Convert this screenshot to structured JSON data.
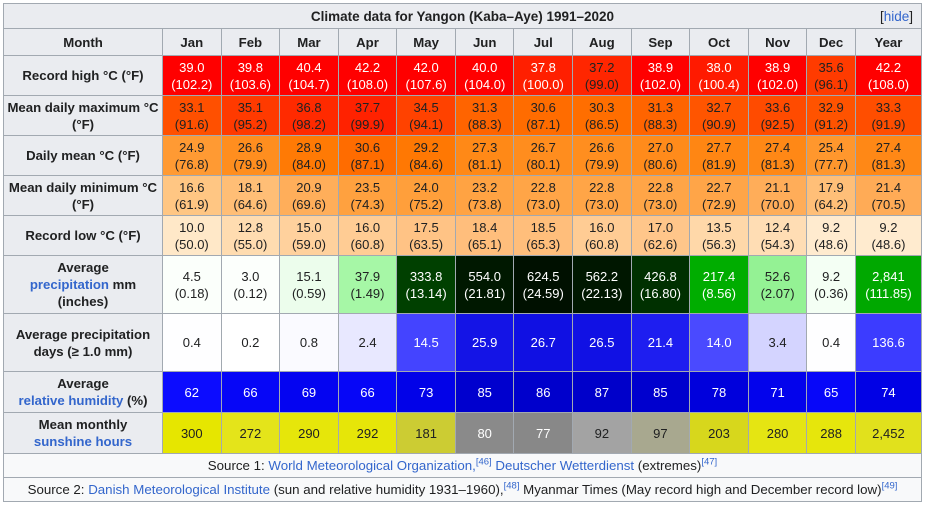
{
  "title": "Climate data for Yangon (Kaba–Aye) 1991–2020",
  "hide_label": "hide",
  "header": {
    "month_label": "Month",
    "months": [
      "Jan",
      "Feb",
      "Mar",
      "Apr",
      "May",
      "Jun",
      "Jul",
      "Aug",
      "Sep",
      "Oct",
      "Nov",
      "Dec",
      "Year"
    ]
  },
  "rows": [
    {
      "label_pre": "Record high °C (°F)",
      "label_link": "",
      "label_post": "",
      "row_class": "r-high",
      "cells": [
        {
          "v": "39.0",
          "s": "(102.2)",
          "bg": "#ff0000",
          "fg": "#ffffff"
        },
        {
          "v": "39.8",
          "s": "(103.6)",
          "bg": "#ff0000",
          "fg": "#ffffff"
        },
        {
          "v": "40.4",
          "s": "(104.7)",
          "bg": "#ff0000",
          "fg": "#ffffff"
        },
        {
          "v": "42.2",
          "s": "(108.0)",
          "bg": "#ff0000",
          "fg": "#ffffff"
        },
        {
          "v": "42.0",
          "s": "(107.6)",
          "bg": "#ff0000",
          "fg": "#ffffff"
        },
        {
          "v": "40.0",
          "s": "(104.0)",
          "bg": "#ff0000",
          "fg": "#ffffff"
        },
        {
          "v": "37.8",
          "s": "(100.0)",
          "bg": "#ff1f00",
          "fg": "#ffffff"
        },
        {
          "v": "37.2",
          "s": "(99.0)",
          "bg": "#ff2600",
          "fg": "#202122"
        },
        {
          "v": "38.9",
          "s": "(102.0)",
          "bg": "#ff0000",
          "fg": "#ffffff"
        },
        {
          "v": "38.0",
          "s": "(100.4)",
          "bg": "#ff1a00",
          "fg": "#ffffff"
        },
        {
          "v": "38.9",
          "s": "(102.0)",
          "bg": "#ff0000",
          "fg": "#ffffff"
        },
        {
          "v": "35.6",
          "s": "(96.1)",
          "bg": "#ff3b00",
          "fg": "#202122"
        },
        {
          "v": "42.2",
          "s": "(108.0)",
          "bg": "#ff0000",
          "fg": "#ffffff"
        }
      ]
    },
    {
      "label_pre": "Mean daily maximum °C (°F)",
      "label_link": "",
      "label_post": "",
      "row_class": "r-max",
      "cells": [
        {
          "v": "33.1",
          "s": "(91.6)",
          "bg": "#ff5000",
          "fg": "#202122"
        },
        {
          "v": "35.1",
          "s": "(95.2)",
          "bg": "#ff3a00",
          "fg": "#202122"
        },
        {
          "v": "36.8",
          "s": "(98.2)",
          "bg": "#ff2a00",
          "fg": "#202122"
        },
        {
          "v": "37.7",
          "s": "(99.9)",
          "bg": "#ff2200",
          "fg": "#202122"
        },
        {
          "v": "34.5",
          "s": "(94.1)",
          "bg": "#ff4200",
          "fg": "#202122"
        },
        {
          "v": "31.3",
          "s": "(88.3)",
          "bg": "#ff6400",
          "fg": "#202122"
        },
        {
          "v": "30.6",
          "s": "(87.1)",
          "bg": "#ff6c00",
          "fg": "#202122"
        },
        {
          "v": "30.3",
          "s": "(86.5)",
          "bg": "#ff6e00",
          "fg": "#202122"
        },
        {
          "v": "31.3",
          "s": "(88.3)",
          "bg": "#ff6400",
          "fg": "#202122"
        },
        {
          "v": "32.7",
          "s": "(90.9)",
          "bg": "#ff5500",
          "fg": "#202122"
        },
        {
          "v": "33.6",
          "s": "(92.5)",
          "bg": "#ff4b00",
          "fg": "#202122"
        },
        {
          "v": "32.9",
          "s": "(91.2)",
          "bg": "#ff5300",
          "fg": "#202122"
        },
        {
          "v": "33.3",
          "s": "(91.9)",
          "bg": "#ff4e00",
          "fg": "#202122"
        }
      ]
    },
    {
      "label_pre": "Daily mean °C (°F)",
      "label_link": "",
      "label_post": "",
      "row_class": "r-mean",
      "cells": [
        {
          "v": "24.9",
          "s": "(76.8)",
          "bg": "#ff9a33",
          "fg": "#202122"
        },
        {
          "v": "26.6",
          "s": "(79.9)",
          "bg": "#ff8e1f",
          "fg": "#202122"
        },
        {
          "v": "28.9",
          "s": "(84.0)",
          "bg": "#ff7a05",
          "fg": "#202122"
        },
        {
          "v": "30.6",
          "s": "(87.1)",
          "bg": "#ff6c00",
          "fg": "#202122"
        },
        {
          "v": "29.2",
          "s": "(84.6)",
          "bg": "#ff7803",
          "fg": "#202122"
        },
        {
          "v": "27.3",
          "s": "(81.1)",
          "bg": "#ff8917",
          "fg": "#202122"
        },
        {
          "v": "26.7",
          "s": "(80.1)",
          "bg": "#ff8d1e",
          "fg": "#202122"
        },
        {
          "v": "26.6",
          "s": "(79.9)",
          "bg": "#ff8e1f",
          "fg": "#202122"
        },
        {
          "v": "27.0",
          "s": "(80.6)",
          "bg": "#ff8b1b",
          "fg": "#202122"
        },
        {
          "v": "27.7",
          "s": "(81.9)",
          "bg": "#ff8613",
          "fg": "#202122"
        },
        {
          "v": "27.4",
          "s": "(81.3)",
          "bg": "#ff8816",
          "fg": "#202122"
        },
        {
          "v": "25.4",
          "s": "(77.7)",
          "bg": "#ff972d",
          "fg": "#202122"
        },
        {
          "v": "27.4",
          "s": "(81.3)",
          "bg": "#ff8816",
          "fg": "#202122"
        }
      ]
    },
    {
      "label_pre": "Mean daily minimum °C (°F)",
      "label_link": "",
      "label_post": "",
      "row_class": "r-min",
      "cells": [
        {
          "v": "16.6",
          "s": "(61.9)",
          "bg": "#ffc683",
          "fg": "#202122"
        },
        {
          "v": "18.1",
          "s": "(64.6)",
          "bg": "#ffbe76",
          "fg": "#202122"
        },
        {
          "v": "20.9",
          "s": "(69.6)",
          "bg": "#ffae5a",
          "fg": "#202122"
        },
        {
          "v": "23.5",
          "s": "(74.3)",
          "bg": "#ffa13f",
          "fg": "#202122"
        },
        {
          "v": "24.0",
          "s": "(75.2)",
          "bg": "#ff9f3b",
          "fg": "#202122"
        },
        {
          "v": "23.2",
          "s": "(73.8)",
          "bg": "#ffa343",
          "fg": "#202122"
        },
        {
          "v": "22.8",
          "s": "(73.0)",
          "bg": "#ffa547",
          "fg": "#202122"
        },
        {
          "v": "22.8",
          "s": "(73.0)",
          "bg": "#ffa547",
          "fg": "#202122"
        },
        {
          "v": "22.8",
          "s": "(73.0)",
          "bg": "#ffa547",
          "fg": "#202122"
        },
        {
          "v": "22.7",
          "s": "(72.9)",
          "bg": "#ffa548",
          "fg": "#202122"
        },
        {
          "v": "21.1",
          "s": "(70.0)",
          "bg": "#ffad59",
          "fg": "#202122"
        },
        {
          "v": "17.9",
          "s": "(64.2)",
          "bg": "#ffbf78",
          "fg": "#202122"
        },
        {
          "v": "21.4",
          "s": "(70.5)",
          "bg": "#ffab56",
          "fg": "#202122"
        }
      ]
    },
    {
      "label_pre": "Record low °C (°F)",
      "label_link": "",
      "label_post": "",
      "row_class": "r-low",
      "cells": [
        {
          "v": "10.0",
          "s": "(50.0)",
          "bg": "#ffe8c8",
          "fg": "#202122"
        },
        {
          "v": "12.8",
          "s": "(55.0)",
          "bg": "#ffdcb0",
          "fg": "#202122"
        },
        {
          "v": "15.0",
          "s": "(59.0)",
          "bg": "#ffd19d",
          "fg": "#202122"
        },
        {
          "v": "16.0",
          "s": "(60.8)",
          "bg": "#ffcc94",
          "fg": "#202122"
        },
        {
          "v": "17.5",
          "s": "(63.5)",
          "bg": "#ffc385",
          "fg": "#202122"
        },
        {
          "v": "18.4",
          "s": "(65.1)",
          "bg": "#ffbe7c",
          "fg": "#202122"
        },
        {
          "v": "18.5",
          "s": "(65.3)",
          "bg": "#ffbe7b",
          "fg": "#202122"
        },
        {
          "v": "16.0",
          "s": "(60.8)",
          "bg": "#ffcc94",
          "fg": "#202122"
        },
        {
          "v": "17.0",
          "s": "(62.6)",
          "bg": "#ffc68a",
          "fg": "#202122"
        },
        {
          "v": "13.5",
          "s": "(56.3)",
          "bg": "#ffd8a9",
          "fg": "#202122"
        },
        {
          "v": "12.4",
          "s": "(54.3)",
          "bg": "#ffddb4",
          "fg": "#202122"
        },
        {
          "v": "9.2",
          "s": "(48.6)",
          "bg": "#ffebcf",
          "fg": "#202122"
        },
        {
          "v": "9.2",
          "s": "(48.6)",
          "bg": "#ffebcf",
          "fg": "#202122"
        }
      ]
    },
    {
      "label_pre": "Average",
      "label_link": "precipitation",
      "label_post": "mm (inches)",
      "row_class": "r-prec",
      "cells": [
        {
          "v": "4.5",
          "s": "(0.18)",
          "bg": "#fbfffb",
          "fg": "#202122"
        },
        {
          "v": "3.0",
          "s": "(0.12)",
          "bg": "#fcfffc",
          "fg": "#202122"
        },
        {
          "v": "15.1",
          "s": "(0.59)",
          "bg": "#ecfdec",
          "fg": "#202122"
        },
        {
          "v": "37.9",
          "s": "(1.49)",
          "bg": "#a6f7a6",
          "fg": "#202122"
        },
        {
          "v": "333.8",
          "s": "(13.14)",
          "bg": "#004000",
          "fg": "#ffffff"
        },
        {
          "v": "554.0",
          "s": "(21.81)",
          "bg": "#001800",
          "fg": "#ffffff"
        },
        {
          "v": "624.5",
          "s": "(24.59)",
          "bg": "#001000",
          "fg": "#ffffff"
        },
        {
          "v": "562.2",
          "s": "(22.13)",
          "bg": "#001700",
          "fg": "#ffffff"
        },
        {
          "v": "426.8",
          "s": "(16.80)",
          "bg": "#003000",
          "fg": "#ffffff"
        },
        {
          "v": "217.4",
          "s": "(8.56)",
          "bg": "#00ad00",
          "fg": "#ffffff"
        },
        {
          "v": "52.6",
          "s": "(2.07)",
          "bg": "#94f294",
          "fg": "#202122"
        },
        {
          "v": "9.2",
          "s": "(0.36)",
          "bg": "#f4fff4",
          "fg": "#202122"
        },
        {
          "v": "2,841",
          "s": "(111.85)",
          "bg": "#00a800",
          "fg": "#ffffff"
        }
      ]
    },
    {
      "label_pre": "Average precipitation days (≥ 1.0 mm)",
      "label_link": "",
      "label_post": "",
      "row_class": "r-days",
      "cells": [
        {
          "v": "0.4",
          "s": "",
          "bg": "#fefeff",
          "fg": "#202122"
        },
        {
          "v": "0.2",
          "s": "",
          "bg": "#ffffff",
          "fg": "#202122"
        },
        {
          "v": "0.8",
          "s": "",
          "bg": "#fafaff",
          "fg": "#202122"
        },
        {
          "v": "2.4",
          "s": "",
          "bg": "#e8e8ff",
          "fg": "#202122"
        },
        {
          "v": "14.5",
          "s": "",
          "bg": "#4444ff",
          "fg": "#ffffff"
        },
        {
          "v": "25.9",
          "s": "",
          "bg": "#1414e6",
          "fg": "#ffffff"
        },
        {
          "v": "26.7",
          "s": "",
          "bg": "#1010e3",
          "fg": "#ffffff"
        },
        {
          "v": "26.5",
          "s": "",
          "bg": "#1111e4",
          "fg": "#ffffff"
        },
        {
          "v": "21.4",
          "s": "",
          "bg": "#1e1ef0",
          "fg": "#ffffff"
        },
        {
          "v": "14.0",
          "s": "",
          "bg": "#4a4aff",
          "fg": "#ffffff"
        },
        {
          "v": "3.4",
          "s": "",
          "bg": "#d4d4ff",
          "fg": "#202122"
        },
        {
          "v": "0.4",
          "s": "",
          "bg": "#fefeff",
          "fg": "#202122"
        },
        {
          "v": "136.6",
          "s": "",
          "bg": "#3c3cff",
          "fg": "#ffffff"
        }
      ]
    },
    {
      "label_pre": "Average",
      "label_link": "relative humidity",
      "label_post": "(%)",
      "row_class": "r-hum",
      "cells": [
        {
          "v": "62",
          "s": "",
          "bg": "#0c0cff",
          "fg": "#ffffff"
        },
        {
          "v": "66",
          "s": "",
          "bg": "#0606f7",
          "fg": "#ffffff"
        },
        {
          "v": "69",
          "s": "",
          "bg": "#0404f1",
          "fg": "#ffffff"
        },
        {
          "v": "66",
          "s": "",
          "bg": "#0606f7",
          "fg": "#ffffff"
        },
        {
          "v": "73",
          "s": "",
          "bg": "#0202e8",
          "fg": "#ffffff"
        },
        {
          "v": "85",
          "s": "",
          "bg": "#0000ce",
          "fg": "#ffffff"
        },
        {
          "v": "86",
          "s": "",
          "bg": "#0000cc",
          "fg": "#ffffff"
        },
        {
          "v": "87",
          "s": "",
          "bg": "#0000ca",
          "fg": "#ffffff"
        },
        {
          "v": "85",
          "s": "",
          "bg": "#0000ce",
          "fg": "#ffffff"
        },
        {
          "v": "78",
          "s": "",
          "bg": "#0000dc",
          "fg": "#ffffff"
        },
        {
          "v": "71",
          "s": "",
          "bg": "#0303ec",
          "fg": "#ffffff"
        },
        {
          "v": "65",
          "s": "",
          "bg": "#0707f9",
          "fg": "#ffffff"
        },
        {
          "v": "74",
          "s": "",
          "bg": "#0101e5",
          "fg": "#ffffff"
        }
      ]
    },
    {
      "label_pre": "Mean monthly",
      "label_link": "sunshine hours",
      "label_post": "",
      "row_class": "r-sun",
      "cells": [
        {
          "v": "300",
          "s": "",
          "bg": "#e6e600",
          "fg": "#202122"
        },
        {
          "v": "272",
          "s": "",
          "bg": "#e4e41a",
          "fg": "#202122"
        },
        {
          "v": "290",
          "s": "",
          "bg": "#e6e60a",
          "fg": "#202122"
        },
        {
          "v": "292",
          "s": "",
          "bg": "#e6e608",
          "fg": "#202122"
        },
        {
          "v": "181",
          "s": "",
          "bg": "#cccc33",
          "fg": "#202122"
        },
        {
          "v": "80",
          "s": "",
          "bg": "#8a8a8a",
          "fg": "#ffffff"
        },
        {
          "v": "77",
          "s": "",
          "bg": "#888888",
          "fg": "#ffffff"
        },
        {
          "v": "92",
          "s": "",
          "bg": "#a3a3a3",
          "fg": "#202122"
        },
        {
          "v": "97",
          "s": "",
          "bg": "#a8a88f",
          "fg": "#202122"
        },
        {
          "v": "203",
          "s": "",
          "bg": "#d7d71c",
          "fg": "#202122"
        },
        {
          "v": "280",
          "s": "",
          "bg": "#e5e512",
          "fg": "#202122"
        },
        {
          "v": "288",
          "s": "",
          "bg": "#e6e60c",
          "fg": "#202122"
        },
        {
          "v": "2,452",
          "s": "",
          "bg": "#e1e11c",
          "fg": "#202122"
        }
      ]
    }
  ],
  "source1": {
    "prefix": "Source 1: ",
    "link1": "World Meteorological Organization,",
    "ref1": "[46]",
    "link2": "Deutscher Wetterdienst",
    "suffix": " (extremes)",
    "ref2": "[47]"
  },
  "source2": {
    "prefix": "Source 2: ",
    "link1": "Danish Meteorological Institute",
    "mid": " (sun and relative humidity 1931–1960),",
    "ref1": "[48]",
    "tail": " Myanmar Times (May record high and December record low)",
    "ref2": "[49]"
  }
}
